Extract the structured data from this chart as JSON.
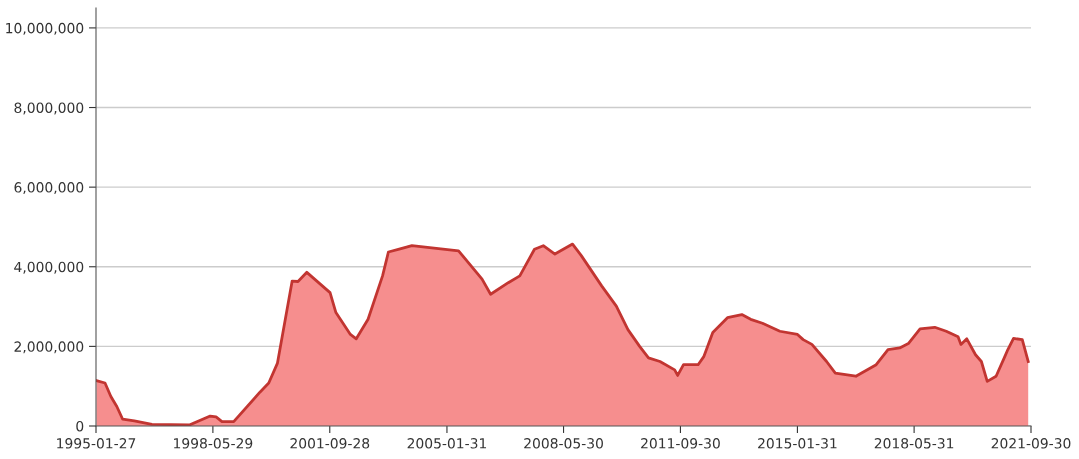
{
  "chart_data": {
    "type": "area",
    "x": [
      "1995-02",
      "1995-05",
      "1995-07",
      "1995-09",
      "1995-11",
      "1996-03",
      "1996-09",
      "1997-10",
      "1998-05",
      "1998-07",
      "1998-09",
      "1999-01",
      "1999-10",
      "2000-01",
      "2000-04",
      "2000-09",
      "2000-11",
      "2001-02",
      "2001-10",
      "2001-12",
      "2002-05",
      "2002-07",
      "2002-11",
      "2003-04",
      "2003-06",
      "2003-10",
      "2004-02",
      "2005-06",
      "2006-02",
      "2006-05",
      "2006-11",
      "2007-03",
      "2007-08",
      "2007-11",
      "2008-03",
      "2008-09",
      "2008-12",
      "2009-07",
      "2009-12",
      "2010-04",
      "2010-08",
      "2010-11",
      "2011-03",
      "2011-08",
      "2011-09",
      "2011-11",
      "2012-04",
      "2012-06",
      "2012-09",
      "2013-02",
      "2013-07",
      "2013-10",
      "2014-02",
      "2014-08",
      "2015-02",
      "2015-04",
      "2015-07",
      "2015-12",
      "2016-03",
      "2016-10",
      "2017-05",
      "2017-09",
      "2018-01",
      "2018-04",
      "2018-08",
      "2019-01",
      "2019-05",
      "2019-09",
      "2019-10",
      "2019-12",
      "2020-03",
      "2020-05",
      "2020-07",
      "2020-10",
      "2021-01",
      "2021-02",
      "2021-04",
      "2021-07",
      "2021-09"
    ],
    "series": [
      {
        "color": "#c23531",
        "values": [
          1140000,
          1080000,
          740000,
          490000,
          170000,
          130000,
          40000,
          30000,
          250000,
          230000,
          110000,
          110000,
          850000,
          1080000,
          1580000,
          3640000,
          3630000,
          3860000,
          3350000,
          2850000,
          2300000,
          2190000,
          2680000,
          3770000,
          4370000,
          4450000,
          4530000,
          4400000,
          3690000,
          3310000,
          3600000,
          3770000,
          4440000,
          4530000,
          4320000,
          4570000,
          4280000,
          3520000,
          3010000,
          2420000,
          2000000,
          1710000,
          1620000,
          1410000,
          1270000,
          1540000,
          1540000,
          1750000,
          2350000,
          2720000,
          2800000,
          2680000,
          2580000,
          2380000,
          2300000,
          2170000,
          2050000,
          1620000,
          1330000,
          1250000,
          1540000,
          1920000,
          1960000,
          2070000,
          2440000,
          2480000,
          2380000,
          2240000,
          2050000,
          2190000,
          1790000,
          1620000,
          1120000,
          1250000,
          1750000,
          1920000,
          2200000,
          2170000,
          1620000
        ]
      }
    ],
    "xlim": [
      "1995-01-27",
      "2021-09-30"
    ],
    "xticks": [
      "1995-01-27",
      "1998-05-29",
      "2001-09-28",
      "2005-01-31",
      "2008-05-30",
      "2011-09-30",
      "2015-01-31",
      "2018-05-31",
      "2021-09-30"
    ],
    "ylim": [
      0,
      10500000
    ],
    "yticks": [
      0,
      {
        "value": 2000000,
        "label": "2,000,000"
      },
      {
        "value": 4000000,
        "label": "4,000,000"
      },
      {
        "value": 6000000,
        "label": "6,000,000"
      },
      {
        "value": 8000000,
        "label": "8,000,000"
      },
      {
        "value": 10000000,
        "label": "10,000,000"
      }
    ],
    "grid": "y"
  }
}
